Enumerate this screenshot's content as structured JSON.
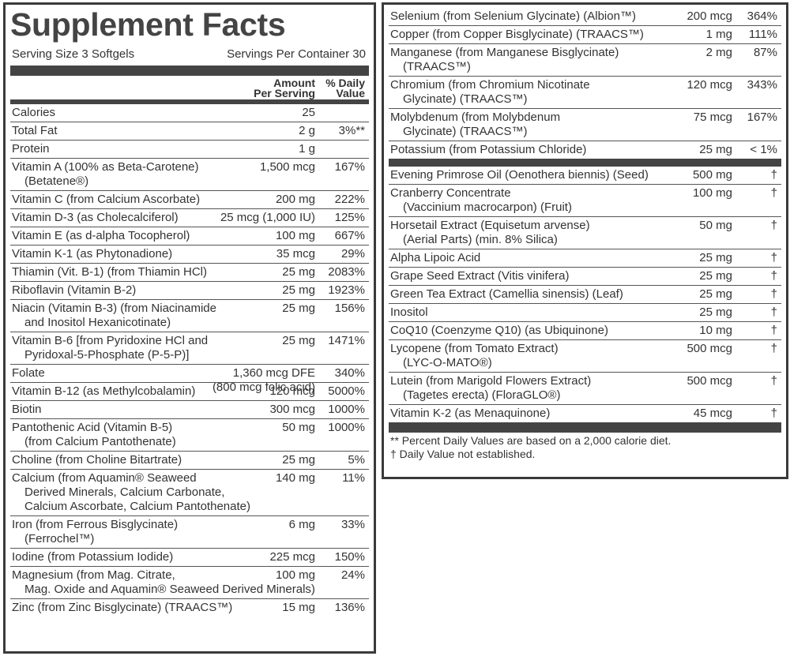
{
  "header": {
    "title": "Supplement Facts",
    "serving_size": "Serving Size 3 Softgels",
    "servings_per_container": "Servings Per Container 30",
    "amount_header": [
      "Amount",
      "Per Serving"
    ],
    "dv_header": [
      "% Daily",
      "Value"
    ]
  },
  "left_rows": [
    {
      "name": [
        "Calories"
      ],
      "amount": [
        "25"
      ]
    },
    {
      "name": [
        "Total Fat"
      ],
      "amount": [
        "2 g"
      ],
      "dv": "3%**"
    },
    {
      "name": [
        "Protein"
      ],
      "amount": [
        "1 g"
      ]
    },
    {
      "name": [
        "Vitamin A (100% as Beta-Carotene)",
        "(Betatene®)"
      ],
      "amount": [
        "1,500 mcg"
      ],
      "dv": "167%"
    },
    {
      "name": [
        "Vitamin C (from Calcium Ascorbate)"
      ],
      "amount": [
        "200 mg"
      ],
      "dv": "222%"
    },
    {
      "name": [
        "Vitamin D-3 (as Cholecalciferol)"
      ],
      "amount": [
        "25 mcg (1,000 IU)"
      ],
      "dv": "125%"
    },
    {
      "name": [
        "Vitamin E (as d-alpha Tocopherol)"
      ],
      "amount": [
        "100 mg"
      ],
      "dv": "667%"
    },
    {
      "name": [
        "Vitamin K-1 (as Phytonadione)"
      ],
      "amount": [
        "35 mcg"
      ],
      "dv": "29%"
    },
    {
      "name": [
        "Thiamin (Vit. B-1) (from Thiamin HCl)"
      ],
      "amount": [
        "25 mg"
      ],
      "dv": "2083%"
    },
    {
      "name": [
        "Riboflavin (Vitamin B-2)"
      ],
      "amount": [
        "25 mg"
      ],
      "dv": "1923%"
    },
    {
      "name": [
        "Niacin (Vitamin B-3) (from Niacinamide",
        "and Inositol Hexanicotinate)"
      ],
      "amount": [
        "25 mg"
      ],
      "dv": "156%"
    },
    {
      "name": [
        "Vitamin B-6 [from Pyridoxine HCl and",
        "Pyridoxal-5-Phosphate (P-5-P)]"
      ],
      "amount": [
        "25 mg"
      ],
      "dv": "1471%"
    },
    {
      "name": [
        "Folate"
      ],
      "amount": [
        "1,360 mcg DFE",
        "(800 mcg folic acid)"
      ],
      "dv": "340%"
    },
    {
      "name": [
        "Vitamin B-12 (as Methylcobalamin)"
      ],
      "amount": [
        "120 mcg"
      ],
      "dv": "5000%"
    },
    {
      "name": [
        "Biotin"
      ],
      "amount": [
        "300 mcg"
      ],
      "dv": "1000%"
    },
    {
      "name": [
        "Pantothenic Acid (Vitamin B-5)",
        "(from Calcium Pantothenate)"
      ],
      "amount": [
        "50 mg"
      ],
      "dv": "1000%"
    },
    {
      "name": [
        "Choline (from Choline Bitartrate)"
      ],
      "amount": [
        "25 mg"
      ],
      "dv": "5%"
    },
    {
      "name": [
        "Calcium (from Aquamin® Seaweed",
        "Derived Minerals, Calcium Carbonate,",
        "Calcium Ascorbate, Calcium Pantothenate)"
      ],
      "amount": [
        "140 mg"
      ],
      "dv": "11%"
    },
    {
      "name": [
        "Iron (from Ferrous Bisglycinate)",
        "(Ferrochel™)"
      ],
      "amount": [
        "6 mg"
      ],
      "dv": "33%"
    },
    {
      "name": [
        "Iodine (from Potassium Iodide)"
      ],
      "amount": [
        "225 mcg"
      ],
      "dv": "150%"
    },
    {
      "name": [
        "Magnesium (from Mag. Citrate,",
        "Mag. Oxide and Aquamin® Seaweed Derived Minerals)"
      ],
      "amount": [
        "100 mg"
      ],
      "dv": "24%"
    },
    {
      "name": [
        "Zinc (from Zinc Bisglycinate) (TRAACS™)"
      ],
      "amount": [
        "15 mg"
      ],
      "dv": "136%"
    }
  ],
  "right_rows": [
    {
      "name": [
        "Selenium (from Selenium Glycinate) (Albion™)"
      ],
      "amount": [
        "200 mcg"
      ],
      "dv": "364%"
    },
    {
      "name": [
        "Copper (from Copper Bisglycinate) (TRAACS™)"
      ],
      "amount": [
        "1 mg"
      ],
      "dv": "111%"
    },
    {
      "name": [
        "Manganese (from Manganese Bisglycinate)",
        "(TRAACS™)"
      ],
      "amount": [
        "2 mg"
      ],
      "dv": "87%"
    },
    {
      "name": [
        "Chromium (from Chromium Nicotinate",
        "Glycinate) (TRAACS™)"
      ],
      "amount": [
        "120 mcg"
      ],
      "dv": "343%"
    },
    {
      "name": [
        "Molybdenum (from Molybdenum",
        "Glycinate) (TRAACS™)"
      ],
      "amount": [
        "75 mcg"
      ],
      "dv": "167%"
    },
    {
      "name": [
        "Potassium (from Potassium Chloride)"
      ],
      "amount": [
        "25 mg"
      ],
      "dv": "< 1%"
    }
  ],
  "botanical_rows": [
    {
      "name": [
        "Evening Primrose Oil (Oenothera biennis) (Seed)"
      ],
      "amount": [
        "500 mg"
      ],
      "dv": "†"
    },
    {
      "name": [
        "Cranberry Concentrate",
        "(Vaccinium macrocarpon) (Fruit)"
      ],
      "amount": [
        "100 mg"
      ],
      "dv": "†"
    },
    {
      "name": [
        "Horsetail Extract (Equisetum arvense)",
        "(Aerial Parts) (min. 8% Silica)"
      ],
      "amount": [
        "50 mg"
      ],
      "dv": "†"
    },
    {
      "name": [
        "Alpha Lipoic Acid"
      ],
      "amount": [
        "25 mg"
      ],
      "dv": "†"
    },
    {
      "name": [
        "Grape Seed Extract (Vitis vinifera)"
      ],
      "amount": [
        "25 mg"
      ],
      "dv": "†"
    },
    {
      "name": [
        "Green Tea Extract (Camellia sinensis) (Leaf)"
      ],
      "amount": [
        "25 mg"
      ],
      "dv": "†"
    },
    {
      "name": [
        "Inositol"
      ],
      "amount": [
        "25 mg"
      ],
      "dv": "†"
    },
    {
      "name": [
        "CoQ10 (Coenzyme Q10) (as Ubiquinone)"
      ],
      "amount": [
        "10 mg"
      ],
      "dv": "†"
    },
    {
      "name": [
        "Lycopene (from Tomato Extract)",
        "(LYC-O-MATO®)"
      ],
      "amount": [
        "500 mcg"
      ],
      "dv": "†"
    },
    {
      "name": [
        "Lutein (from Marigold Flowers Extract)",
        "(Tagetes erecta) (FloraGLO®)"
      ],
      "amount": [
        "500 mcg"
      ],
      "dv": "†"
    },
    {
      "name": [
        "Vitamin K-2 (as Menaquinone)"
      ],
      "amount": [
        "45 mcg"
      ],
      "dv": "†"
    }
  ],
  "footnotes": [
    "** Percent Daily Values are based on a 2,000 calorie diet.",
    "† Daily Value not established."
  ]
}
